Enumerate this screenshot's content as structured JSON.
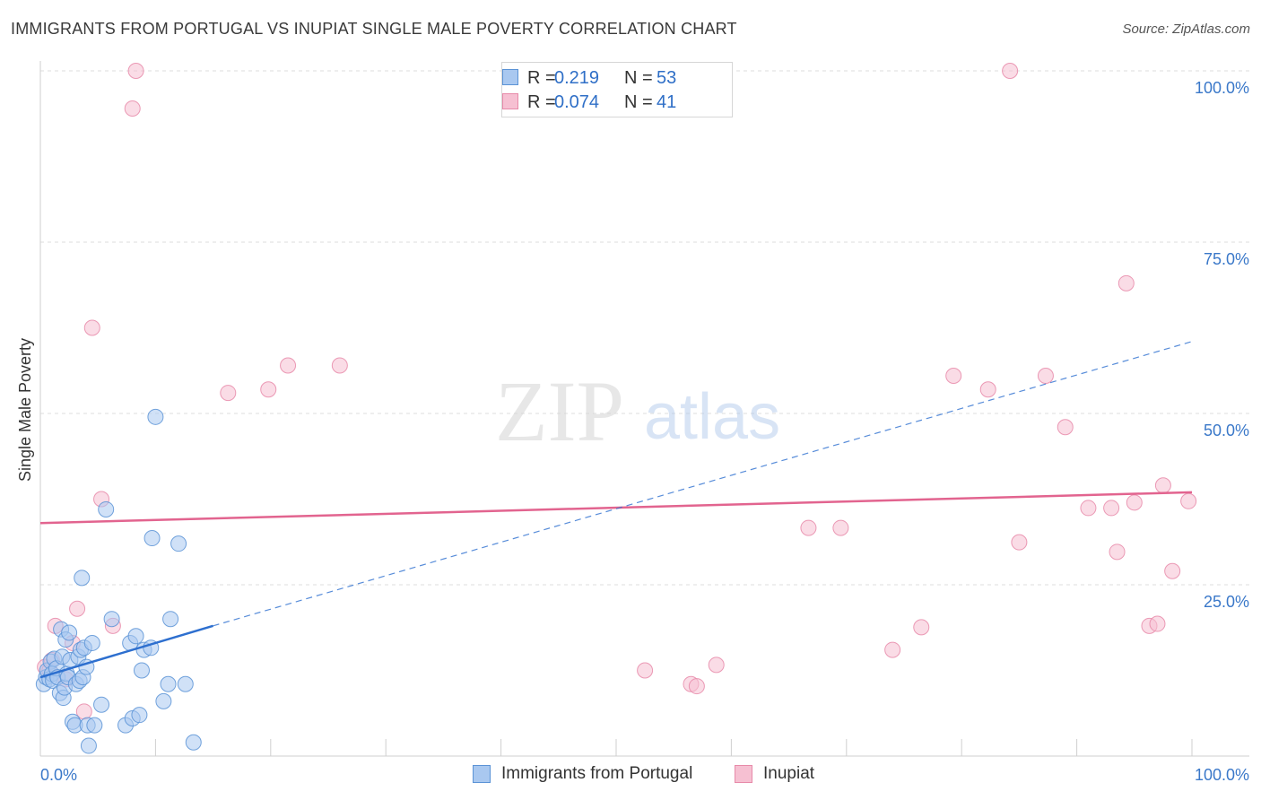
{
  "title": "IMMIGRANTS FROM PORTUGAL VS INUPIAT SINGLE MALE POVERTY CORRELATION CHART",
  "source": "Source: ZipAtlas.com",
  "watermark": {
    "zip": "ZIP",
    "atlas": "atlas"
  },
  "legend_top": [
    {
      "r_label": "R =",
      "r_value": "0.219",
      "n_label": "N =",
      "n_value": "53"
    },
    {
      "r_label": "R =",
      "r_value": "0.074",
      "n_label": "N =",
      "n_value": "41"
    }
  ],
  "legend_bottom": [
    "Immigrants from Portugal",
    "Inupiat"
  ],
  "colors": {
    "blue_fill": "#a9c8f0",
    "blue_stroke": "#5b93d6",
    "blue_line": "#2d6fcf",
    "pink_fill": "#f6c0d2",
    "pink_stroke": "#e78aa9",
    "pink_line": "#e2648f",
    "axis_text": "#3a78c9",
    "grid": "#dedede"
  },
  "chart_data": {
    "type": "scatter",
    "title": "IMMIGRANTS FROM PORTUGAL VS INUPIAT SINGLE MALE POVERTY CORRELATION CHART",
    "xlabel": "",
    "ylabel": "Single Male Poverty",
    "xlim": [
      0,
      100
    ],
    "ylim": [
      0,
      100
    ],
    "x_tick_labels": [
      "0.0%",
      "100.0%"
    ],
    "y_tick_labels": [
      "25.0%",
      "50.0%",
      "75.0%",
      "100.0%"
    ],
    "y_ticks": [
      25,
      50,
      75,
      100
    ],
    "series": [
      {
        "name": "Immigrants from Portugal",
        "R": 0.219,
        "N": 53,
        "trend_solid": {
          "x": [
            0,
            15
          ],
          "y": [
            11.5,
            19.0
          ]
        },
        "trend_dashed": {
          "x": [
            15,
            100
          ],
          "y": [
            19.0,
            60.5
          ]
        },
        "points": [
          {
            "x": 0.3,
            "y": 10.5
          },
          {
            "x": 0.5,
            "y": 11.5
          },
          {
            "x": 0.6,
            "y": 12.5
          },
          {
            "x": 0.8,
            "y": 11.2
          },
          {
            "x": 0.9,
            "y": 13.8
          },
          {
            "x": 1.0,
            "y": 12.0
          },
          {
            "x": 1.1,
            "y": 11.0
          },
          {
            "x": 1.2,
            "y": 14.2
          },
          {
            "x": 1.4,
            "y": 12.8
          },
          {
            "x": 1.5,
            "y": 11.5
          },
          {
            "x": 1.7,
            "y": 9.2
          },
          {
            "x": 1.8,
            "y": 18.5
          },
          {
            "x": 1.9,
            "y": 14.5
          },
          {
            "x": 2.0,
            "y": 8.5
          },
          {
            "x": 2.1,
            "y": 10.0
          },
          {
            "x": 2.2,
            "y": 17.0
          },
          {
            "x": 2.3,
            "y": 12.0
          },
          {
            "x": 2.4,
            "y": 11.5
          },
          {
            "x": 2.5,
            "y": 18.0
          },
          {
            "x": 2.6,
            "y": 14.0
          },
          {
            "x": 2.8,
            "y": 5.0
          },
          {
            "x": 3.0,
            "y": 4.5
          },
          {
            "x": 3.1,
            "y": 10.5
          },
          {
            "x": 3.3,
            "y": 14.5
          },
          {
            "x": 3.4,
            "y": 11.0
          },
          {
            "x": 3.5,
            "y": 15.5
          },
          {
            "x": 3.6,
            "y": 26.0
          },
          {
            "x": 3.7,
            "y": 11.5
          },
          {
            "x": 3.8,
            "y": 15.8
          },
          {
            "x": 4.0,
            "y": 13.0
          },
          {
            "x": 4.1,
            "y": 4.5
          },
          {
            "x": 4.2,
            "y": 1.5
          },
          {
            "x": 4.5,
            "y": 16.5
          },
          {
            "x": 4.7,
            "y": 4.5
          },
          {
            "x": 5.3,
            "y": 7.5
          },
          {
            "x": 5.7,
            "y": 36.0
          },
          {
            "x": 6.2,
            "y": 20.0
          },
          {
            "x": 7.4,
            "y": 4.5
          },
          {
            "x": 7.8,
            "y": 16.5
          },
          {
            "x": 8.0,
            "y": 5.5
          },
          {
            "x": 8.3,
            "y": 17.5
          },
          {
            "x": 8.6,
            "y": 6.0
          },
          {
            "x": 8.8,
            "y": 12.5
          },
          {
            "x": 9.0,
            "y": 15.5
          },
          {
            "x": 9.6,
            "y": 15.8
          },
          {
            "x": 9.7,
            "y": 31.8
          },
          {
            "x": 10.0,
            "y": 49.5
          },
          {
            "x": 10.7,
            "y": 8.0
          },
          {
            "x": 11.1,
            "y": 10.5
          },
          {
            "x": 11.3,
            "y": 20.0
          },
          {
            "x": 12.0,
            "y": 31.0
          },
          {
            "x": 12.6,
            "y": 10.5
          },
          {
            "x": 13.3,
            "y": 2.0
          }
        ]
      },
      {
        "name": "Inupiat",
        "R": 0.074,
        "N": 41,
        "trend_solid": {
          "x": [
            0,
            100
          ],
          "y": [
            34.0,
            38.5
          ]
        },
        "points": [
          {
            "x": 0.4,
            "y": 13.0
          },
          {
            "x": 0.8,
            "y": 12.5
          },
          {
            "x": 1.0,
            "y": 14.0
          },
          {
            "x": 1.3,
            "y": 19.0
          },
          {
            "x": 2.2,
            "y": 11.2
          },
          {
            "x": 2.8,
            "y": 16.5
          },
          {
            "x": 3.2,
            "y": 21.5
          },
          {
            "x": 3.8,
            "y": 6.5
          },
          {
            "x": 4.5,
            "y": 62.5
          },
          {
            "x": 5.3,
            "y": 37.5
          },
          {
            "x": 6.3,
            "y": 19.0
          },
          {
            "x": 8.0,
            "y": 94.5
          },
          {
            "x": 8.3,
            "y": 100.0
          },
          {
            "x": 16.3,
            "y": 53.0
          },
          {
            "x": 19.8,
            "y": 53.5
          },
          {
            "x": 21.5,
            "y": 57.0
          },
          {
            "x": 26.0,
            "y": 57.0
          },
          {
            "x": 52.5,
            "y": 12.5
          },
          {
            "x": 56.5,
            "y": 10.5
          },
          {
            "x": 57.0,
            "y": 10.2
          },
          {
            "x": 58.7,
            "y": 13.3
          },
          {
            "x": 66.7,
            "y": 33.3
          },
          {
            "x": 69.5,
            "y": 33.3
          },
          {
            "x": 74.0,
            "y": 15.5
          },
          {
            "x": 76.5,
            "y": 18.8
          },
          {
            "x": 79.3,
            "y": 55.5
          },
          {
            "x": 82.3,
            "y": 53.5
          },
          {
            "x": 84.2,
            "y": 100.0
          },
          {
            "x": 85.0,
            "y": 31.2
          },
          {
            "x": 87.3,
            "y": 55.5
          },
          {
            "x": 89.0,
            "y": 48.0
          },
          {
            "x": 91.0,
            "y": 36.2
          },
          {
            "x": 93.0,
            "y": 36.2
          },
          {
            "x": 93.5,
            "y": 29.8
          },
          {
            "x": 94.3,
            "y": 69.0
          },
          {
            "x": 95.0,
            "y": 37.0
          },
          {
            "x": 96.3,
            "y": 19.0
          },
          {
            "x": 97.0,
            "y": 19.3
          },
          {
            "x": 97.5,
            "y": 39.5
          },
          {
            "x": 98.3,
            "y": 27.0
          },
          {
            "x": 99.7,
            "y": 37.2
          }
        ]
      }
    ]
  }
}
